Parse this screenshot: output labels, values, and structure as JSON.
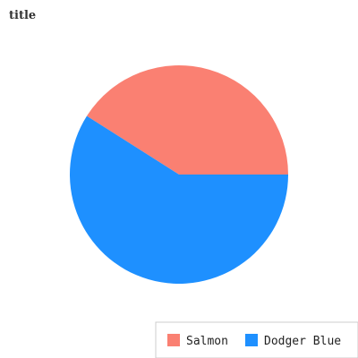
{
  "chart_data": {
    "type": "pie",
    "title": "title",
    "slices": [
      {
        "label": "Salmon",
        "value": 41,
        "color": "#FA8072"
      },
      {
        "label": "Dodger Blue",
        "value": 59,
        "color": "#1E90FF"
      }
    ],
    "start_angle_deg": 0,
    "direction": "counterclockwise",
    "legend_position": "bottom-right"
  }
}
